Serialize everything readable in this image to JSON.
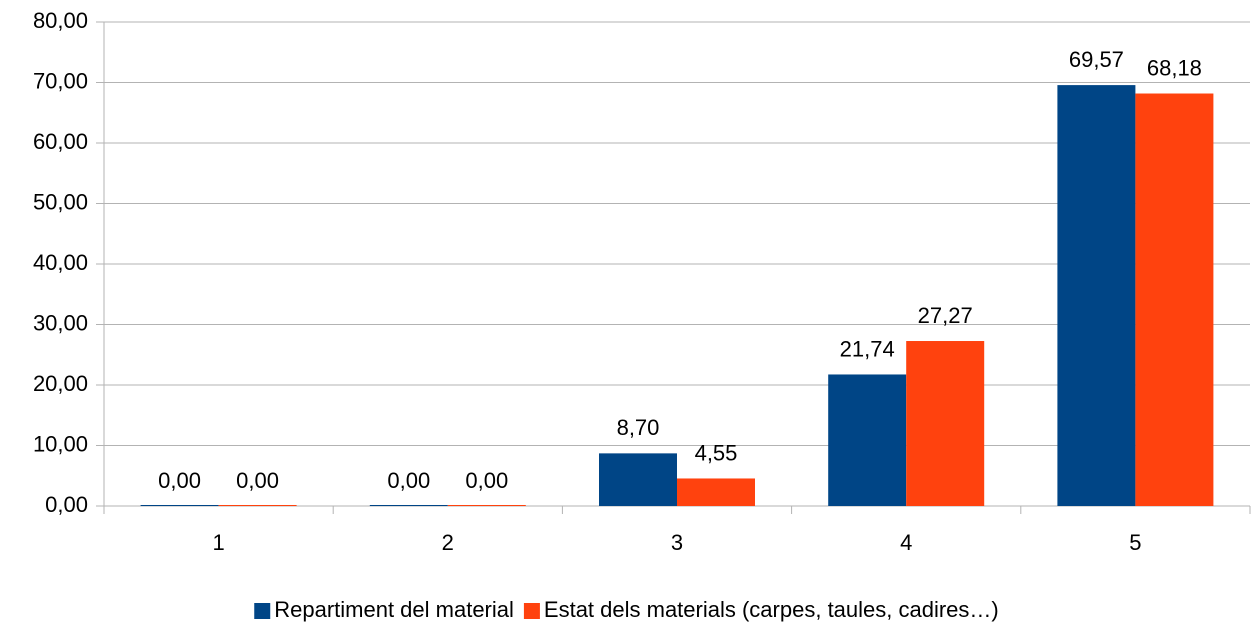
{
  "chart_data": {
    "type": "bar",
    "categories": [
      "1",
      "2",
      "3",
      "4",
      "5"
    ],
    "series": [
      {
        "name": "Repartiment del material",
        "color": "#004586",
        "values": [
          0,
          0,
          8.7,
          21.74,
          69.57
        ],
        "value_labels": [
          "0,00",
          "0,00",
          "8,70",
          "21,74",
          "69,57"
        ]
      },
      {
        "name": "Estat dels materials (carpes, taules, cadires…)",
        "color": "#ff420e",
        "values": [
          0,
          0,
          4.55,
          27.27,
          68.18
        ],
        "value_labels": [
          "0,00",
          "0,00",
          "4,55",
          "27,27",
          "68,18"
        ]
      }
    ],
    "ylim": [
      0,
      80
    ],
    "yticks": [
      {
        "value": 0,
        "label": "0,00"
      },
      {
        "value": 10,
        "label": "10,00"
      },
      {
        "value": 20,
        "label": "20,00"
      },
      {
        "value": 30,
        "label": "30,00"
      },
      {
        "value": 40,
        "label": "40,00"
      },
      {
        "value": 50,
        "label": "50,00"
      },
      {
        "value": 60,
        "label": "60,00"
      },
      {
        "value": 70,
        "label": "70,00"
      },
      {
        "value": 80,
        "label": "80,00"
      }
    ],
    "grid": true,
    "legend": "bottom"
  }
}
